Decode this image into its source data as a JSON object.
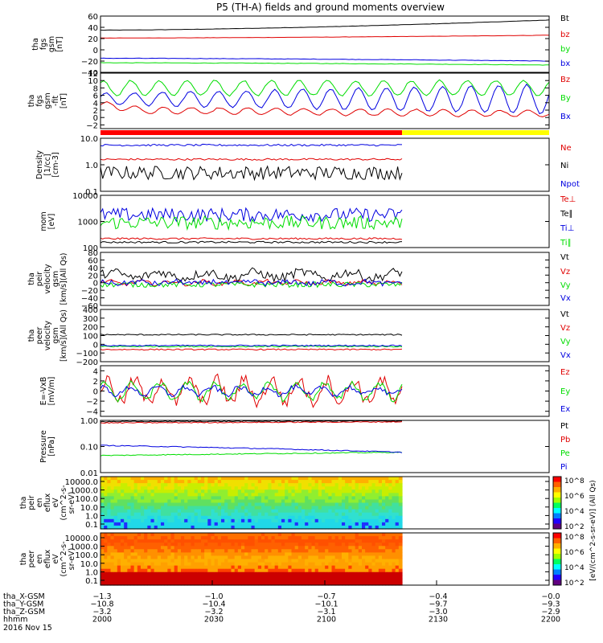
{
  "title": "P5 (TH-A) fields and ground moments overview",
  "colors": {
    "black": "#000000",
    "red": "#e00000",
    "green": "#00dd00",
    "blue": "#0000e0",
    "yellow": "#ffff00",
    "cyan": "#00eeee"
  },
  "chart_data": [
    {
      "type": "line",
      "id": "p1",
      "ylabel": [
        "tha",
        "fgs",
        "gsm",
        "[nT]"
      ],
      "ylim": [
        -40,
        60
      ],
      "ticks": [
        "60",
        "40",
        "20",
        "0",
        "−20",
        "−40"
      ],
      "tickvals": [
        60,
        40,
        20,
        0,
        -20,
        -40
      ],
      "series": [
        {
          "name": "Bt",
          "color": "black",
          "start": 35,
          "end": 53,
          "noise": 0.5
        },
        {
          "name": "bz",
          "color": "red",
          "start": 21,
          "end": 26,
          "noise": 0.4
        },
        {
          "name": "by",
          "color": "green",
          "start": -23,
          "end": -27,
          "noise": 0.8
        },
        {
          "name": "bx",
          "color": "blue",
          "start": -15,
          "end": -20,
          "noise": 0.8
        }
      ]
    },
    {
      "type": "line",
      "id": "p2",
      "ylabel": [
        "tha",
        "fgs",
        "gsm",
        "-fit",
        "[nT]"
      ],
      "ylim": [
        -3,
        12
      ],
      "ticks": [
        "12",
        "10",
        "8",
        "6",
        "4",
        "2",
        "0",
        "−2"
      ],
      "tickvals": [
        12,
        10,
        8,
        6,
        4,
        2,
        0,
        -2
      ],
      "series": [
        {
          "name": "Bz",
          "color": "red"
        },
        {
          "name": "By",
          "color": "green"
        },
        {
          "name": "Bx",
          "color": "blue"
        }
      ]
    },
    {
      "type": "line",
      "id": "p3",
      "ylabel": [
        "Density",
        "[1/cc]",
        "[cm-3]"
      ],
      "log": true,
      "ylim": [
        0.1,
        10
      ],
      "ticks": [
        "10.0",
        "1.0",
        "0.1"
      ],
      "tickvals": [
        10,
        1,
        0.1
      ],
      "series": [
        {
          "name": "Ne",
          "color": "red",
          "level": 1.6
        },
        {
          "name": "Ni",
          "color": "black",
          "level": 0.5
        },
        {
          "name": "Npot",
          "color": "blue",
          "level": 5.5
        }
      ]
    },
    {
      "type": "line",
      "id": "p4",
      "ylabel": [
        "mom",
        "[eV]"
      ],
      "log": true,
      "ylim": [
        100,
        10000
      ],
      "ticks": [
        "10000",
        "1000",
        "100"
      ],
      "tickvals": [
        10000,
        1000,
        100
      ],
      "series": [
        {
          "name": "Te⊥",
          "color": "red",
          "level": 220
        },
        {
          "name": "Te∥",
          "color": "black",
          "level": 160
        },
        {
          "name": "Ti⊥",
          "color": "blue",
          "level": 1800
        },
        {
          "name": "Ti∥",
          "color": "green",
          "level": 900
        }
      ]
    },
    {
      "type": "line",
      "id": "p5",
      "ylabel": [
        "tha",
        "peir",
        "velocity",
        "gsm",
        "[km/s](All Qs)"
      ],
      "ylim": [
        -60,
        80
      ],
      "ticks": [
        "80",
        "60",
        "40",
        "20",
        "0",
        "−20",
        "−40",
        "−60"
      ],
      "tickvals": [
        80,
        60,
        40,
        20,
        0,
        -20,
        -40,
        -60
      ],
      "series": [
        {
          "name": "Vt",
          "color": "black"
        },
        {
          "name": "Vz",
          "color": "red"
        },
        {
          "name": "Vy",
          "color": "green"
        },
        {
          "name": "Vx",
          "color": "blue"
        }
      ]
    },
    {
      "type": "line",
      "id": "p6",
      "ylabel": [
        "tha",
        "peer",
        "velocity",
        "gsm",
        "[km/s](All Qs)"
      ],
      "ylim": [
        -200,
        400
      ],
      "ticks": [
        "400",
        "300",
        "200",
        "100",
        "0",
        "−100",
        "−200"
      ],
      "tickvals": [
        400,
        300,
        200,
        100,
        0,
        -100,
        -200
      ],
      "series": [
        {
          "name": "Vt",
          "color": "black",
          "level": 110
        },
        {
          "name": "Vz",
          "color": "red",
          "level": -60
        },
        {
          "name": "Vy",
          "color": "green",
          "level": -25
        },
        {
          "name": "Vx",
          "color": "blue",
          "level": -15
        }
      ]
    },
    {
      "type": "line",
      "id": "p7",
      "ylabel": [
        "E=-VxB",
        "[mV/m]"
      ],
      "ylim": [
        -5,
        5
      ],
      "ticks": [
        "4",
        "2",
        "0",
        "−2",
        "−4"
      ],
      "tickvals": [
        4,
        2,
        0,
        -2,
        -4
      ],
      "series": [
        {
          "name": "Ez",
          "color": "red"
        },
        {
          "name": "Ey",
          "color": "green"
        },
        {
          "name": "Ex",
          "color": "blue"
        }
      ]
    },
    {
      "type": "line",
      "id": "p8",
      "ylabel": [
        "Pressure",
        "[nPa]"
      ],
      "log": true,
      "ylim": [
        0.01,
        1
      ],
      "ticks": [
        "1.00",
        "0.10",
        "0.01"
      ],
      "tickvals": [
        1,
        0.1,
        0.01
      ],
      "series": [
        {
          "name": "Pt",
          "color": "black",
          "start": 0.9,
          "end": 0.95
        },
        {
          "name": "Pb",
          "color": "red",
          "start": 0.8,
          "end": 0.88
        },
        {
          "name": "Pe",
          "color": "green",
          "start": 0.045,
          "end": 0.06
        },
        {
          "name": "Pi",
          "color": "blue",
          "start": 0.11,
          "end": 0.06
        }
      ]
    },
    {
      "type": "heatmap",
      "id": "p9",
      "ylabel": [
        "tha",
        "peir",
        "en",
        "eflux",
        "eV",
        "(cm^2-s-",
        "sr-eV)"
      ],
      "ticks": [
        "10000.0",
        "1000.0",
        "100.0",
        "10.0",
        "1.0",
        "0.1"
      ]
    },
    {
      "type": "heatmap",
      "id": "p10",
      "ylabel": [
        "tha",
        "peer",
        "en",
        "eflux",
        "eV",
        "(cm^2-s-",
        "sr-eV)"
      ],
      "ticks": [
        "10000.0",
        "1000.0",
        "100.0",
        "10.0",
        "1.0",
        "0.1"
      ]
    }
  ],
  "colorbar": {
    "ticks": [
      "10^8",
      "10^6",
      "10^4",
      "10^2"
    ],
    "label": "[eV/(cm^2-s-sr-eV)] (All Qs)"
  },
  "status_bar": {
    "red_until": "2124",
    "yellow_after": "2124"
  },
  "x_axis": {
    "rows": [
      {
        "label": "tha_X-GSM",
        "values": [
          "−1.3",
          "−1.0",
          "−0.7",
          "−0.4",
          "−0.0"
        ]
      },
      {
        "label": "tha_Y-GSM",
        "values": [
          "−10.8",
          "−10.4",
          "−10.1",
          "−9.7",
          "−9.3"
        ]
      },
      {
        "label": "tha_Z-GSM",
        "values": [
          "−3.2",
          "−3.2",
          "−3.1",
          "−3.0",
          "−2.9"
        ]
      },
      {
        "label": "hhmm",
        "values": [
          "2000",
          "2030",
          "2100",
          "2130",
          "2200"
        ]
      }
    ],
    "date": "2016 Nov 15"
  }
}
